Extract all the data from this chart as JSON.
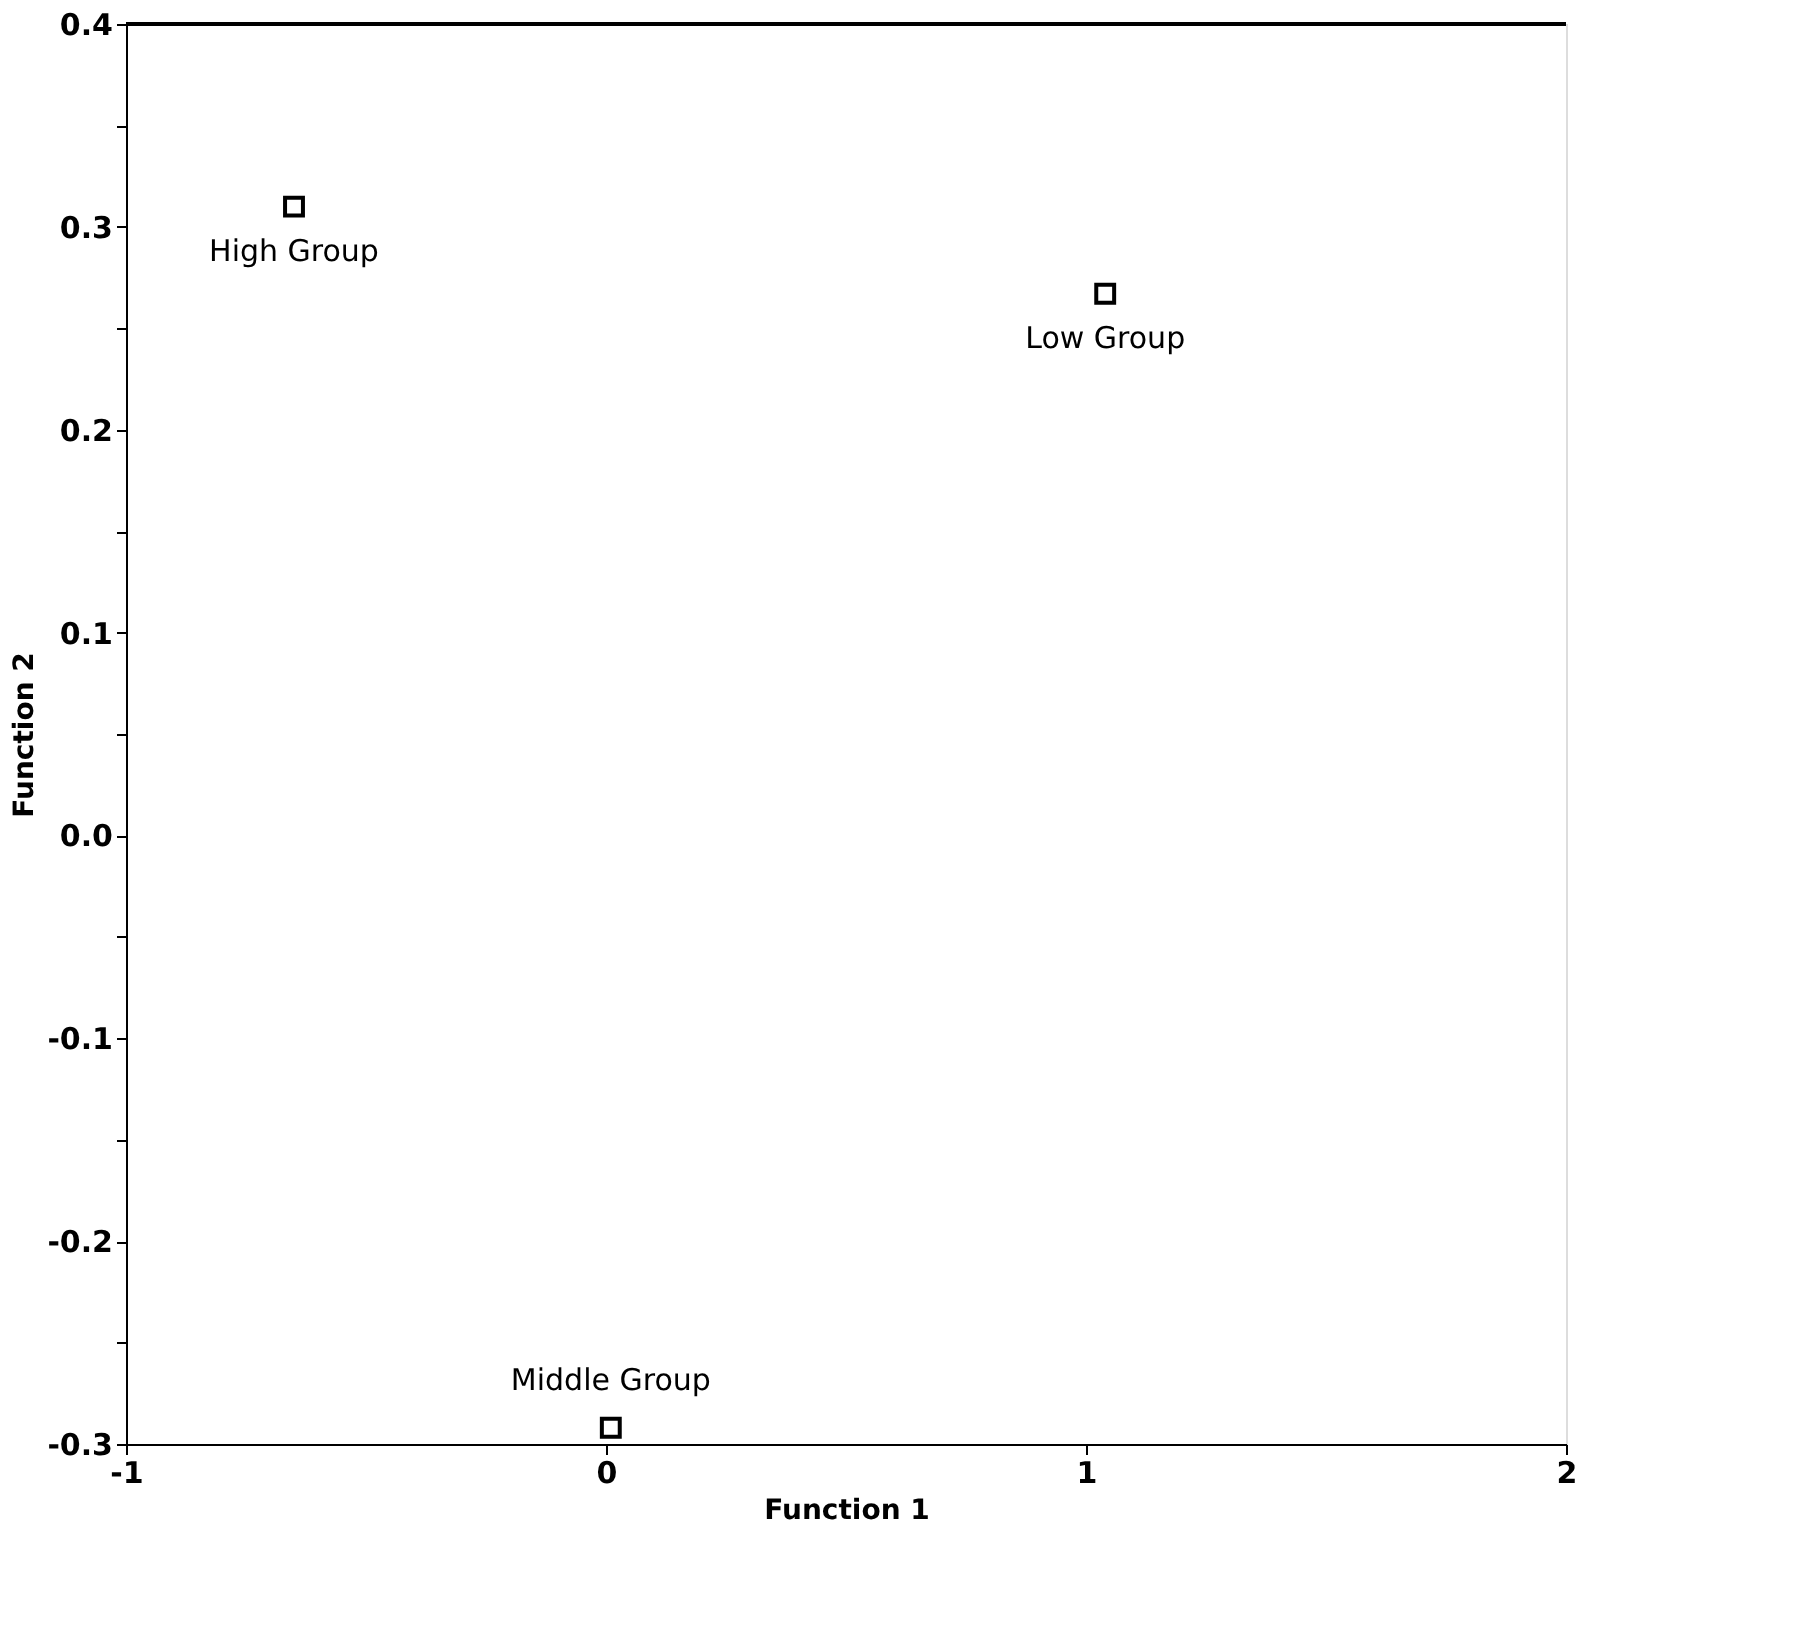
{
  "chart_data": {
    "type": "scatter",
    "xlabel": "Function 1",
    "ylabel": "Function 2",
    "x": [
      -0.65,
      1.04,
      0.01
    ],
    "values": [
      0.31,
      0.267,
      -0.292
    ],
    "color": "#000000",
    "marker": "square",
    "grid": false,
    "xlim": [
      -1,
      2
    ],
    "xticks": [
      -1,
      0,
      1,
      2
    ],
    "ylim": [
      -0.3,
      0.4
    ],
    "yticks": [
      -0.3,
      {
        "value": -0.25,
        "label": null
      },
      -0.2,
      {
        "value": -0.15,
        "label": null
      },
      -0.1,
      {
        "value": -0.05,
        "label": null
      },
      {
        "value": 0,
        "label": "0.0"
      },
      {
        "value": 0.05,
        "label": null
      },
      0.1,
      {
        "value": 0.15,
        "label": null
      },
      0.2,
      {
        "value": 0.25,
        "label": null
      },
      0.3,
      {
        "value": 0.35,
        "label": null
      },
      0.4
    ],
    "annotations": [
      {
        "text": "High Group",
        "x": -0.65,
        "y": 0.31
      },
      {
        "text": "Low Group",
        "x": 1.04,
        "y": 0.267
      },
      {
        "text": "Middle Group",
        "x": 0.01,
        "y": -0.292
      }
    ]
  }
}
